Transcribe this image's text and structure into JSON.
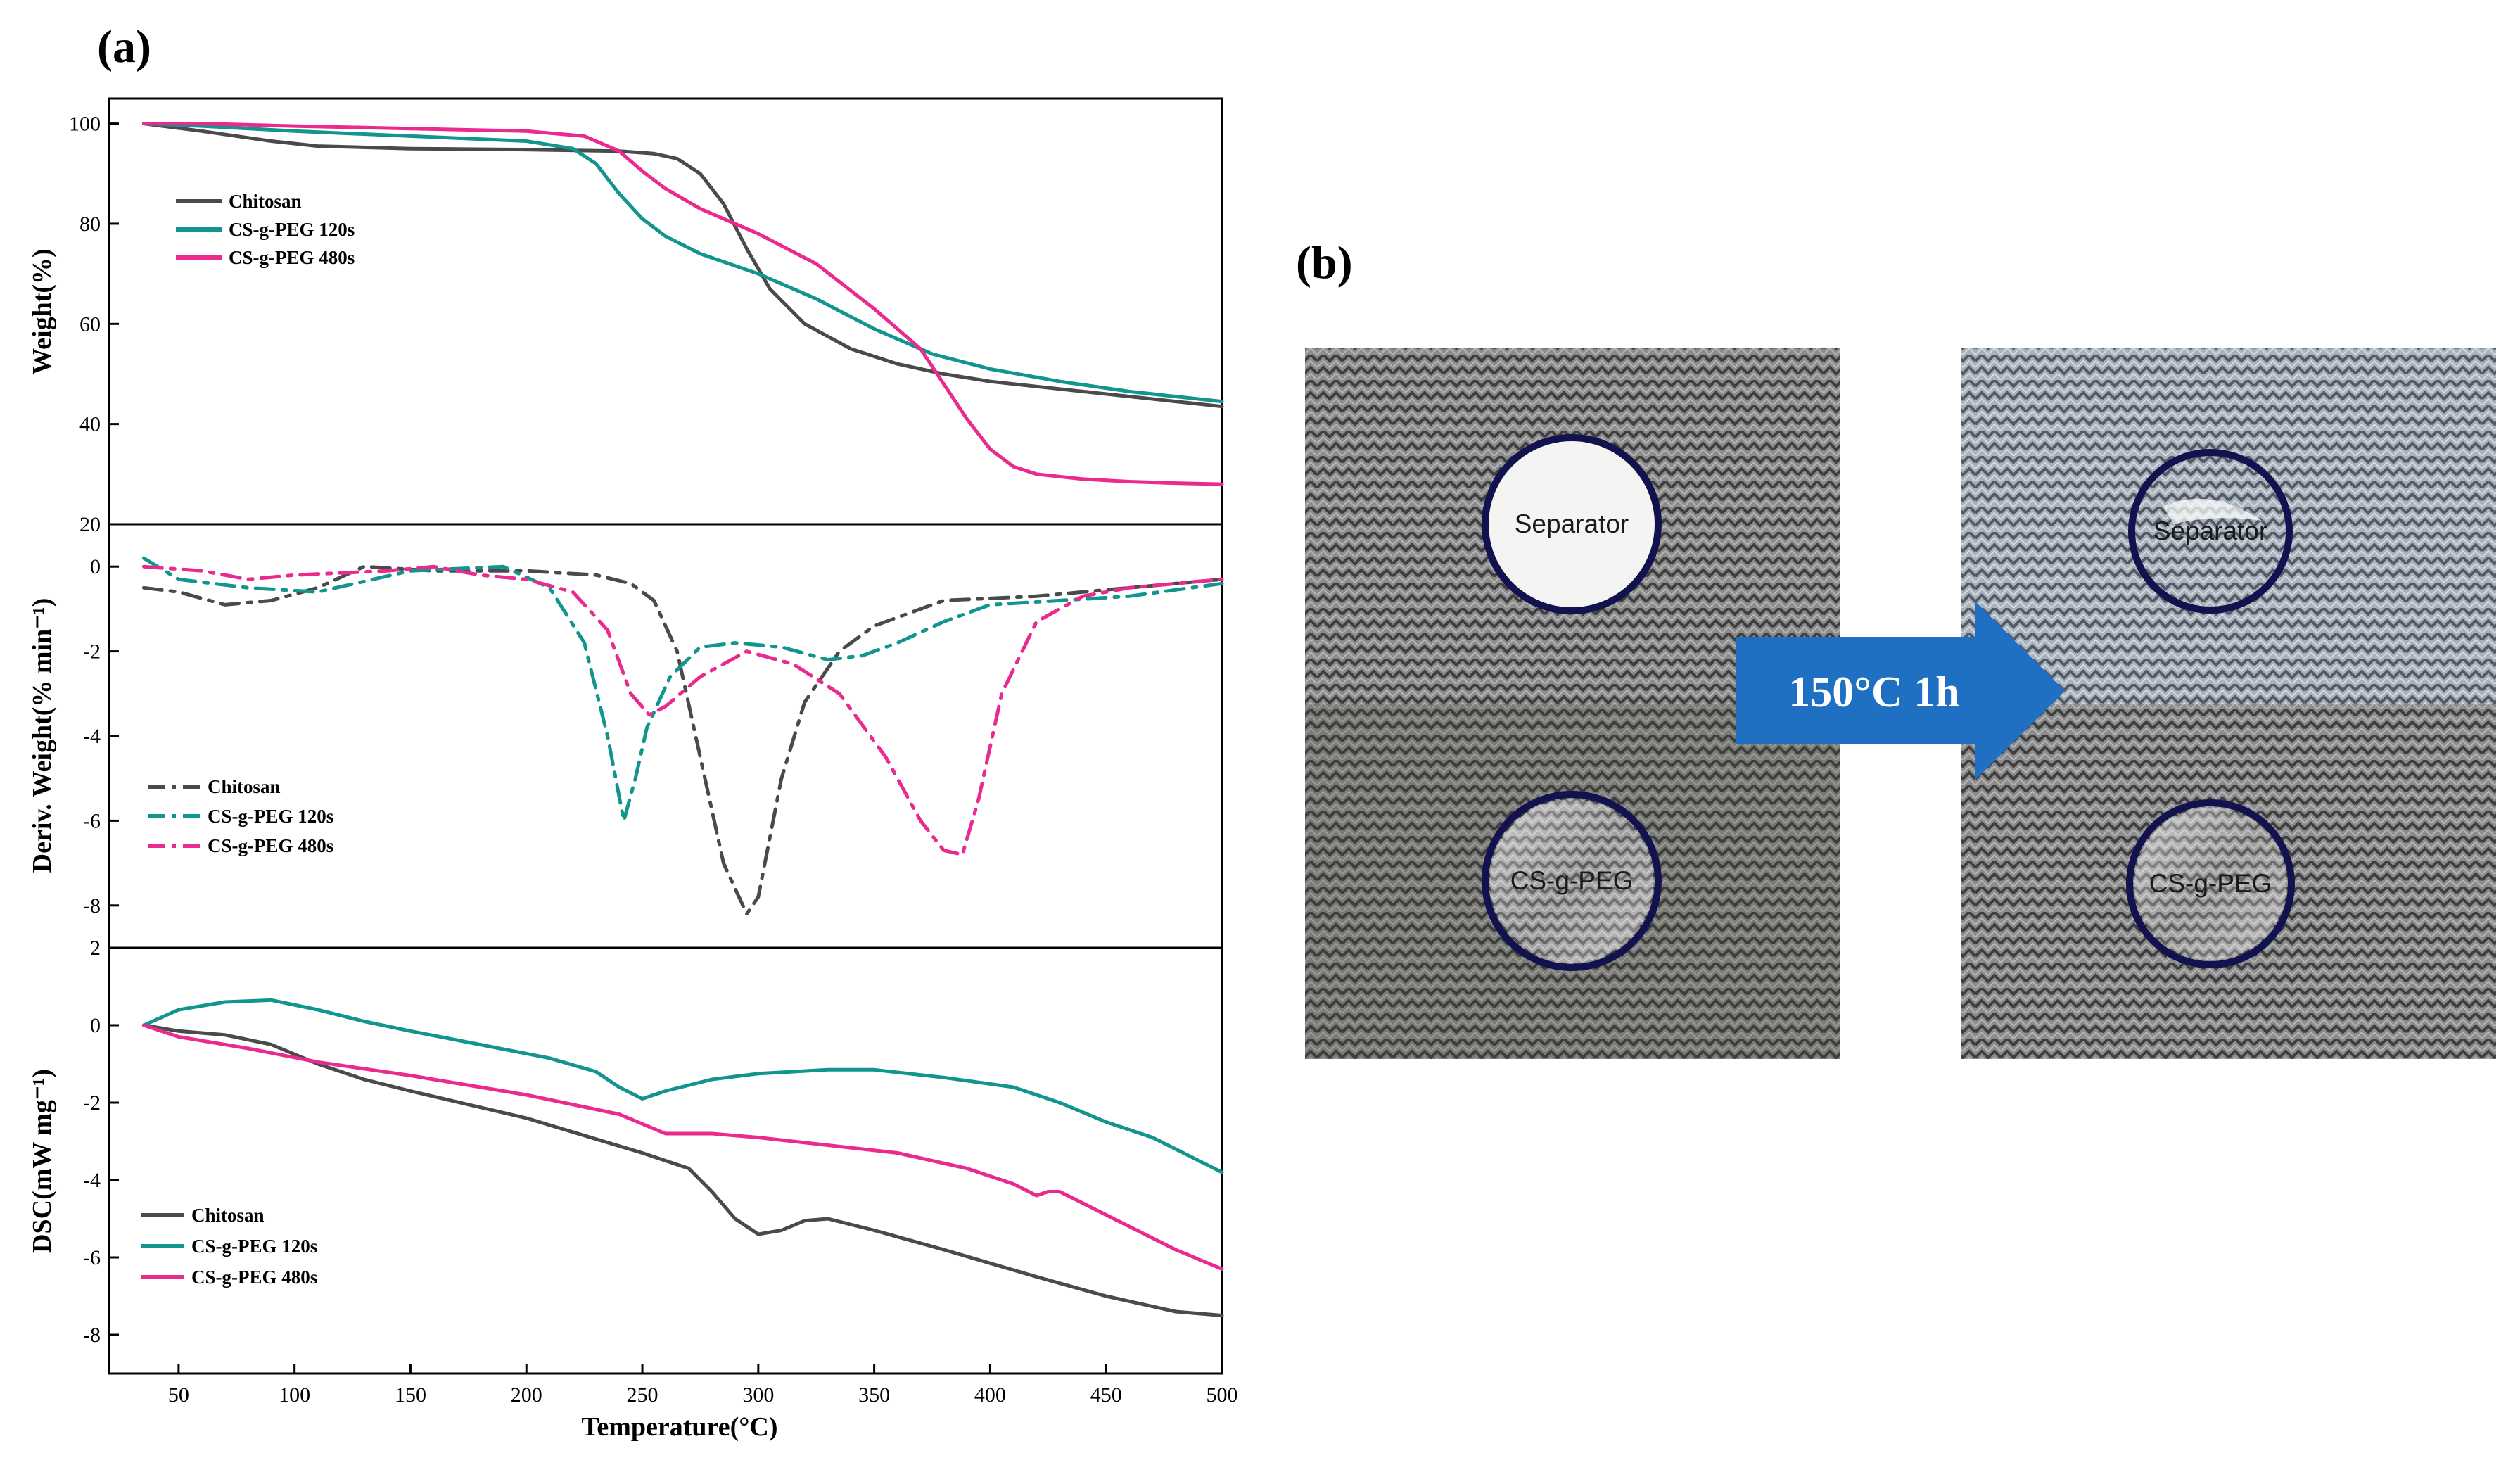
{
  "panel_a_label": "(a)",
  "panel_b_label": "(b)",
  "colors": {
    "chitosan": "#4a4a4a",
    "cs120": "#12948f",
    "cs480": "#ea2a8e",
    "arrow": "#1f6fc2",
    "circle": "#12124e"
  },
  "chart_data": [
    {
      "type": "line",
      "xlabel": "Temperature(°C)",
      "ylabel": "Weight(%)",
      "xlim": [
        20,
        500
      ],
      "ylim": [
        20,
        105
      ],
      "yticks": [
        20,
        40,
        60,
        80,
        100
      ],
      "legend_position": "upper-left",
      "series": [
        {
          "name": "Chitosan",
          "color": "#4a4a4a",
          "dash": "solid",
          "x": [
            35,
            60,
            90,
            110,
            150,
            200,
            240,
            255,
            265,
            275,
            285,
            295,
            305,
            320,
            340,
            360,
            380,
            400,
            430,
            460,
            500
          ],
          "y": [
            100,
            98.5,
            96.5,
            95.5,
            95,
            94.8,
            94.5,
            94,
            93,
            90,
            84,
            75,
            67,
            60,
            55,
            52,
            50,
            48.5,
            47,
            45.5,
            43.5
          ]
        },
        {
          "name": "CS-g-PEG 120s",
          "color": "#12948f",
          "dash": "solid",
          "x": [
            35,
            60,
            100,
            150,
            200,
            220,
            230,
            240,
            250,
            260,
            275,
            300,
            325,
            350,
            375,
            400,
            430,
            460,
            500
          ],
          "y": [
            100,
            99.5,
            98.5,
            97.5,
            96.5,
            95,
            92,
            86,
            81,
            77.5,
            74,
            70,
            65,
            59,
            54,
            51,
            48.5,
            46.5,
            44.5
          ]
        },
        {
          "name": "CS-g-PEG 480s",
          "color": "#ea2a8e",
          "dash": "solid",
          "x": [
            35,
            60,
            100,
            150,
            200,
            225,
            240,
            250,
            260,
            275,
            300,
            325,
            350,
            370,
            380,
            390,
            400,
            410,
            420,
            440,
            460,
            480,
            500
          ],
          "y": [
            100,
            100,
            99.5,
            99,
            98.5,
            97.5,
            94.5,
            90.5,
            87,
            83,
            78,
            72,
            63,
            55,
            48,
            41,
            35,
            31.5,
            30,
            29,
            28.5,
            28.2,
            28
          ]
        }
      ]
    },
    {
      "type": "line",
      "xlabel": "Temperature(°C)",
      "ylabel": "Deriv. Weight(% min⁻¹)",
      "xlim": [
        20,
        500
      ],
      "ylim": [
        -9,
        1
      ],
      "yticks": [
        -8,
        -6,
        -4,
        -2,
        0
      ],
      "legend_position": "lower-left",
      "series": [
        {
          "name": "Chitosan",
          "color": "#4a4a4a",
          "dash": "dashdot",
          "x": [
            35,
            50,
            70,
            90,
            110,
            130,
            160,
            200,
            230,
            245,
            255,
            265,
            275,
            285,
            295,
            300,
            310,
            320,
            335,
            350,
            380,
            420,
            460,
            500
          ],
          "y": [
            -0.5,
            -0.6,
            -0.9,
            -0.8,
            -0.5,
            0,
            -0.1,
            -0.1,
            -0.2,
            -0.4,
            -0.8,
            -2,
            -4.5,
            -7,
            -8.2,
            -7.8,
            -5,
            -3.2,
            -2,
            -1.4,
            -0.8,
            -0.7,
            -0.5,
            -0.3
          ]
        },
        {
          "name": "CS-g-PEG 120s",
          "color": "#12948f",
          "dash": "dashdot",
          "x": [
            35,
            50,
            80,
            110,
            150,
            190,
            210,
            225,
            235,
            242,
            247,
            252,
            262,
            275,
            290,
            310,
            330,
            345,
            360,
            380,
            400,
            430,
            460,
            500
          ],
          "y": [
            0.2,
            -0.3,
            -0.5,
            -0.6,
            -0.1,
            0,
            -0.5,
            -1.8,
            -4,
            -6,
            -5,
            -3.8,
            -2.6,
            -1.9,
            -1.8,
            -1.9,
            -2.2,
            -2.1,
            -1.8,
            -1.3,
            -0.9,
            -0.8,
            -0.7,
            -0.4
          ]
        },
        {
          "name": "CS-g-PEG 480s",
          "color": "#ea2a8e",
          "dash": "dashdot",
          "x": [
            35,
            60,
            80,
            100,
            140,
            160,
            180,
            200,
            220,
            235,
            245,
            253,
            260,
            275,
            295,
            315,
            335,
            355,
            370,
            380,
            388,
            395,
            405,
            420,
            440,
            460,
            480,
            500
          ],
          "y": [
            0,
            -0.1,
            -0.3,
            -0.2,
            -0.1,
            0,
            -0.2,
            -0.3,
            -0.6,
            -1.5,
            -3,
            -3.5,
            -3.3,
            -2.6,
            -2,
            -2.3,
            -3,
            -4.5,
            -6,
            -6.7,
            -6.8,
            -5.5,
            -3,
            -1.3,
            -0.7,
            -0.5,
            -0.4,
            -0.3
          ]
        }
      ]
    },
    {
      "type": "line",
      "xlabel": "Temperature(°C)",
      "ylabel": "DSC(mW mg⁻¹)",
      "xlim": [
        20,
        500
      ],
      "ylim": [
        -9,
        2
      ],
      "yticks": [
        -8,
        -6,
        -4,
        -2,
        0,
        2
      ],
      "xticks": [
        50,
        100,
        150,
        200,
        250,
        300,
        350,
        400,
        450,
        500
      ],
      "legend_position": "lower-left",
      "series": [
        {
          "name": "Chitosan",
          "color": "#4a4a4a",
          "dash": "solid",
          "x": [
            35,
            50,
            70,
            90,
            110,
            130,
            150,
            200,
            250,
            270,
            280,
            290,
            300,
            310,
            320,
            330,
            350,
            380,
            420,
            450,
            480,
            500
          ],
          "y": [
            0,
            -0.15,
            -0.25,
            -0.5,
            -1,
            -1.4,
            -1.7,
            -2.4,
            -3.3,
            -3.7,
            -4.3,
            -5,
            -5.4,
            -5.3,
            -5.05,
            -5.0,
            -5.3,
            -5.8,
            -6.5,
            -7,
            -7.4,
            -7.5
          ]
        },
        {
          "name": "CS-g-PEG 120s",
          "color": "#12948f",
          "dash": "solid",
          "x": [
            35,
            50,
            70,
            90,
            110,
            130,
            150,
            180,
            210,
            230,
            240,
            250,
            260,
            280,
            300,
            330,
            350,
            380,
            410,
            430,
            450,
            470,
            500
          ],
          "y": [
            0,
            0.4,
            0.6,
            0.65,
            0.4,
            0.1,
            -0.15,
            -0.5,
            -0.85,
            -1.2,
            -1.6,
            -1.9,
            -1.7,
            -1.4,
            -1.25,
            -1.15,
            -1.15,
            -1.35,
            -1.6,
            -2,
            -2.5,
            -2.9,
            -3.8
          ]
        },
        {
          "name": "CS-g-PEG 480s",
          "color": "#ea2a8e",
          "dash": "solid",
          "x": [
            35,
            50,
            80,
            110,
            150,
            200,
            240,
            260,
            280,
            300,
            330,
            360,
            390,
            410,
            420,
            425,
            430,
            440,
            460,
            480,
            500
          ],
          "y": [
            0,
            -0.3,
            -0.6,
            -0.95,
            -1.3,
            -1.8,
            -2.3,
            -2.8,
            -2.8,
            -2.9,
            -3.1,
            -3.3,
            -3.7,
            -4.1,
            -4.4,
            -4.3,
            -4.3,
            -4.6,
            -5.2,
            -5.8,
            -6.3
          ]
        }
      ]
    }
  ],
  "photos": {
    "before": {
      "top_label": "Separator",
      "bottom_label": "CS-g-PEG"
    },
    "after": {
      "top_label": "Separator",
      "bottom_label": "CS-g-PEG"
    },
    "arrow_label": "150°C 1h"
  }
}
